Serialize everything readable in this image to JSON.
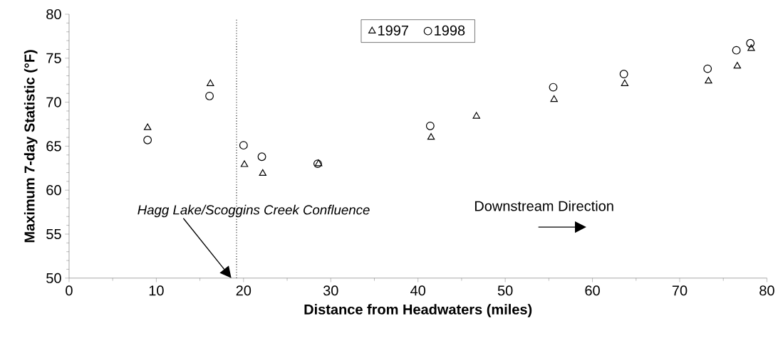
{
  "chart_data": {
    "type": "scatter",
    "xlabel": "Distance from Headwaters (miles)",
    "ylabel": "Maximum 7-day Statistic (°F)",
    "series": [
      {
        "name": "1997",
        "color": "#000000",
        "marker": "triangle",
        "x": [
          9.0,
          16.2,
          20.1,
          22.2,
          28.6,
          41.5,
          46.7,
          55.6,
          63.7,
          73.3,
          76.6,
          78.2
        ],
        "values": [
          67.1,
          72.1,
          62.9,
          61.9,
          63.0,
          66.0,
          68.4,
          70.3,
          72.1,
          72.4,
          74.1,
          76.1
        ]
      },
      {
        "name": "1998",
        "color": "#000000",
        "marker": "circle",
        "x": [
          9.0,
          16.1,
          20.0,
          22.1,
          28.5,
          41.4,
          55.5,
          63.6,
          73.2,
          76.5,
          78.1
        ],
        "values": [
          65.7,
          70.7,
          65.1,
          63.8,
          63.0,
          67.3,
          71.7,
          73.2,
          73.8,
          75.9,
          76.7
        ]
      }
    ],
    "xlim": [
      0,
      80
    ],
    "xticks": [
      0,
      10,
      20,
      30,
      40,
      50,
      60,
      70,
      80
    ],
    "ylim": [
      50,
      80
    ],
    "yticks": [
      50,
      55,
      60,
      65,
      70,
      75,
      80
    ],
    "ref_lines": [
      {
        "axis": "x",
        "value": 19.2,
        "line_style": "dotted",
        "color": "#000000"
      }
    ],
    "annotations": [
      "Hagg Lake/Scoggins Creek Confluence",
      "Downstream Direction"
    ],
    "legend": "top",
    "grid": false
  }
}
